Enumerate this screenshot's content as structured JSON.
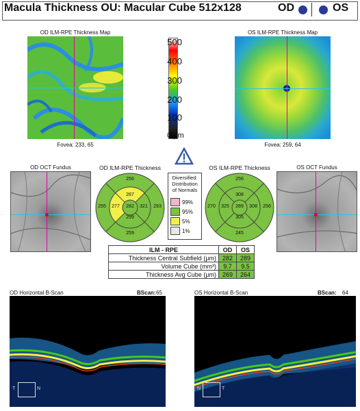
{
  "header": {
    "title": "Macula Thickness OU: Macular Cube 512x128",
    "od_label": "OD",
    "os_label": "OS"
  },
  "od_map": {
    "title": "OD ILM-RPE Thickness Map",
    "fovea": "Fovea: 233, 65"
  },
  "os_map": {
    "title": "OS ILM-RPE Thickness Map",
    "fovea": "Fovea: 259, 64"
  },
  "colorbar": {
    "labels": [
      "500",
      "400",
      "300",
      "200",
      "100",
      "0 µm"
    ]
  },
  "alert_icon": "warning-triangle-icon",
  "od_fundus": {
    "title": "OD OCT Fundus"
  },
  "os_fundus": {
    "title": "OS OCT Fundus"
  },
  "od_etdrs": {
    "title": "OD ILM-RPE Thickness",
    "superior": "256",
    "inner_superior": "287",
    "nasal_outer": "293",
    "inner_nasal": "321",
    "center": "282",
    "inner_temporal": "277",
    "temporal_outer": "255",
    "inner_inferior": "299",
    "inferior": "259"
  },
  "os_etdrs": {
    "title": "OS ILM-RPE Thickness",
    "superior": "256",
    "inner_superior": "308",
    "nasal_outer": "256",
    "inner_nasal": "308",
    "center": "289",
    "inner_temporal": "325",
    "temporal_outer": "270",
    "inner_inferior": "305",
    "inferior": "245"
  },
  "legend": {
    "title_line1": "Diversified:",
    "title_line2": "Distribution",
    "title_line3": "of Normals",
    "p99": "99%",
    "p95": "95%",
    "p5": "5%",
    "p1": "1%"
  },
  "table": {
    "header": [
      "ILM - RPE",
      "OD",
      "OS"
    ],
    "rows": [
      {
        "label": "Thickness Central Subfield (µm)",
        "od": "282",
        "os": "289"
      },
      {
        "label": "Volume Cube (mm³)",
        "od": "9.7",
        "os": "9.5"
      },
      {
        "label": "Thickness Avg Cube (µm)",
        "od": "269",
        "os": "264"
      }
    ]
  },
  "od_bscan": {
    "title": "OD Horizontal B-Scan",
    "bscan_label": "BScan:",
    "bscan_value": "65",
    "t": "T",
    "n": "N"
  },
  "os_bscan": {
    "title": "OS Horizontal B-Scan",
    "bscan_label": "BScan:",
    "bscan_value": "64",
    "t": "T",
    "n": "N"
  },
  "colors": {
    "normal_green": "#7cc243",
    "yellow": "#f2f046",
    "eye_blue": "#2a3a9a",
    "crosshair_v": "#e0009c",
    "crosshair_h": "#22c6ec"
  }
}
